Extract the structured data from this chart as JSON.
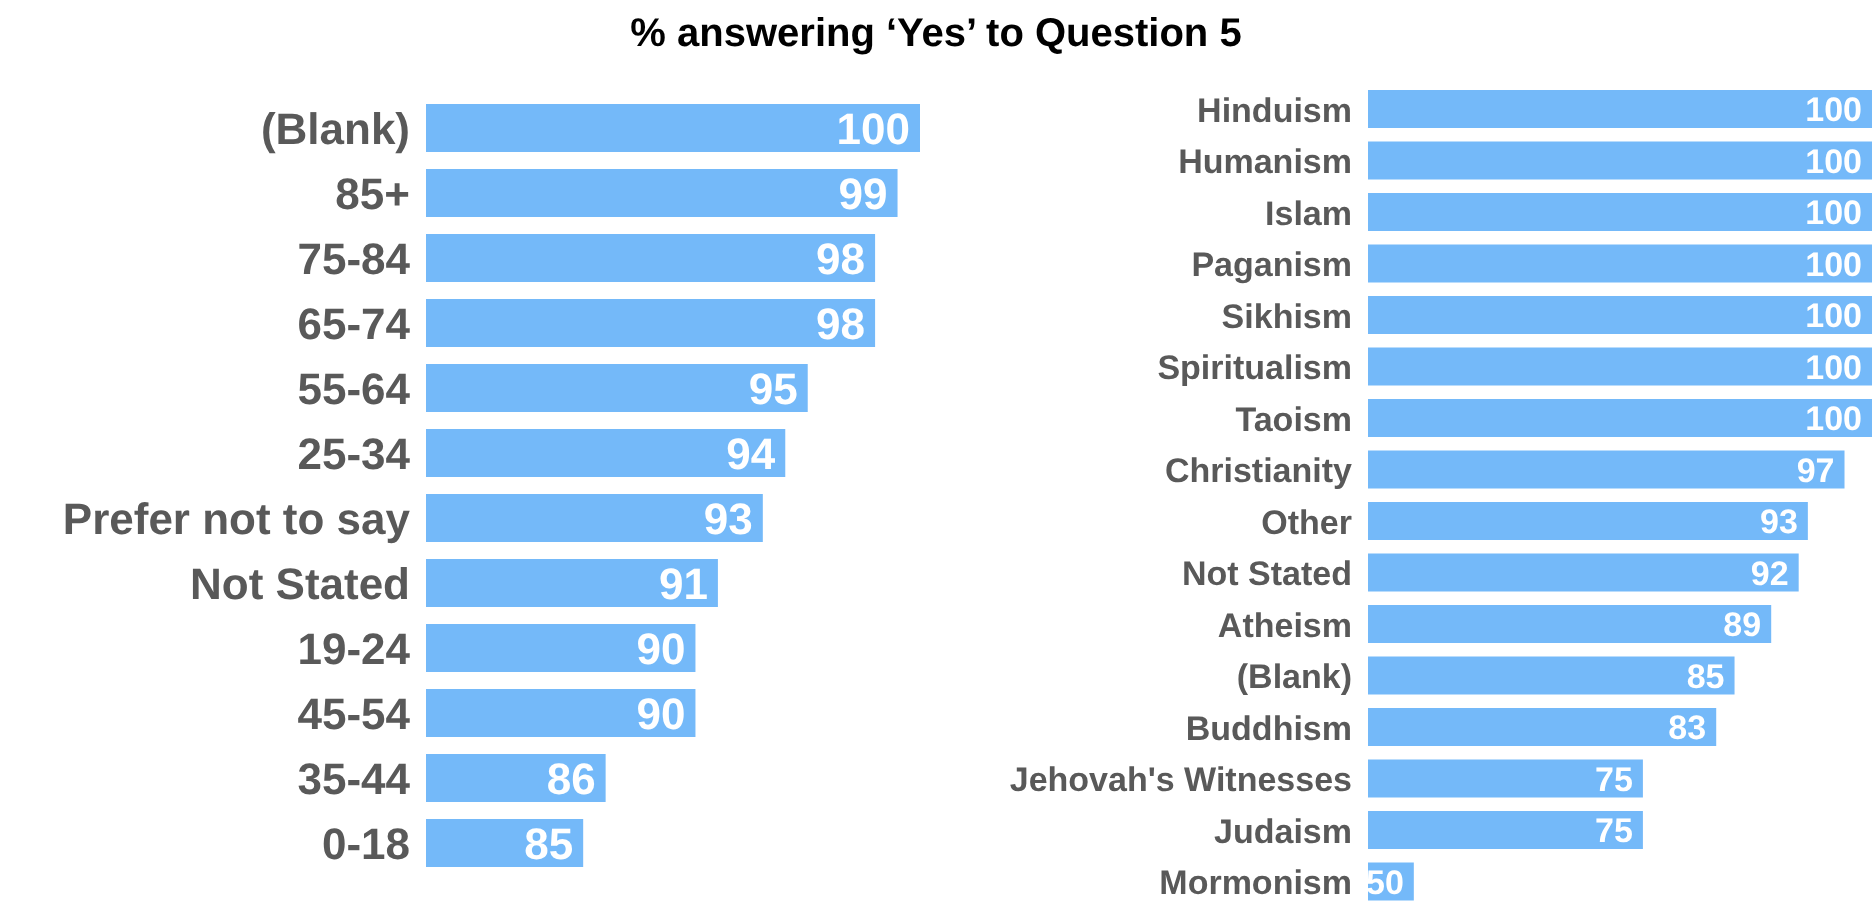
{
  "chart_data": [
    {
      "type": "bar",
      "orientation": "horizontal",
      "title": "% answering ‘Yes’ to Question 5",
      "categories": [
        "(Blank)",
        "85+",
        "75-84",
        "65-74",
        "55-64",
        "25-34",
        "Prefer not to say",
        "Not Stated",
        "19-24",
        "45-54",
        "35-44",
        "0-18"
      ],
      "values": [
        100,
        99,
        98,
        98,
        95,
        94,
        93,
        91,
        90,
        90,
        86,
        85
      ],
      "color": "#74b9f9",
      "xlim": [
        78,
        100
      ],
      "data_labels": true,
      "tick_labels": "y"
    },
    {
      "type": "bar",
      "orientation": "horizontal",
      "categories": [
        "Hinduism",
        "Humanism",
        "Islam",
        "Paganism",
        "Sikhism",
        "Spiritualism",
        "Taoism",
        "Christianity",
        "Other",
        "Not Stated",
        "Atheism",
        "(Blank)",
        "Buddhism",
        "Jehovah's Witnesses",
        "Judaism",
        "Mormonism"
      ],
      "values": [
        100,
        100,
        100,
        100,
        100,
        100,
        100,
        97,
        93,
        92,
        89,
        85,
        83,
        75,
        75,
        50
      ],
      "color": "#74b9f9",
      "xlim": [
        45,
        100
      ],
      "data_labels": true,
      "tick_labels": "y"
    }
  ]
}
